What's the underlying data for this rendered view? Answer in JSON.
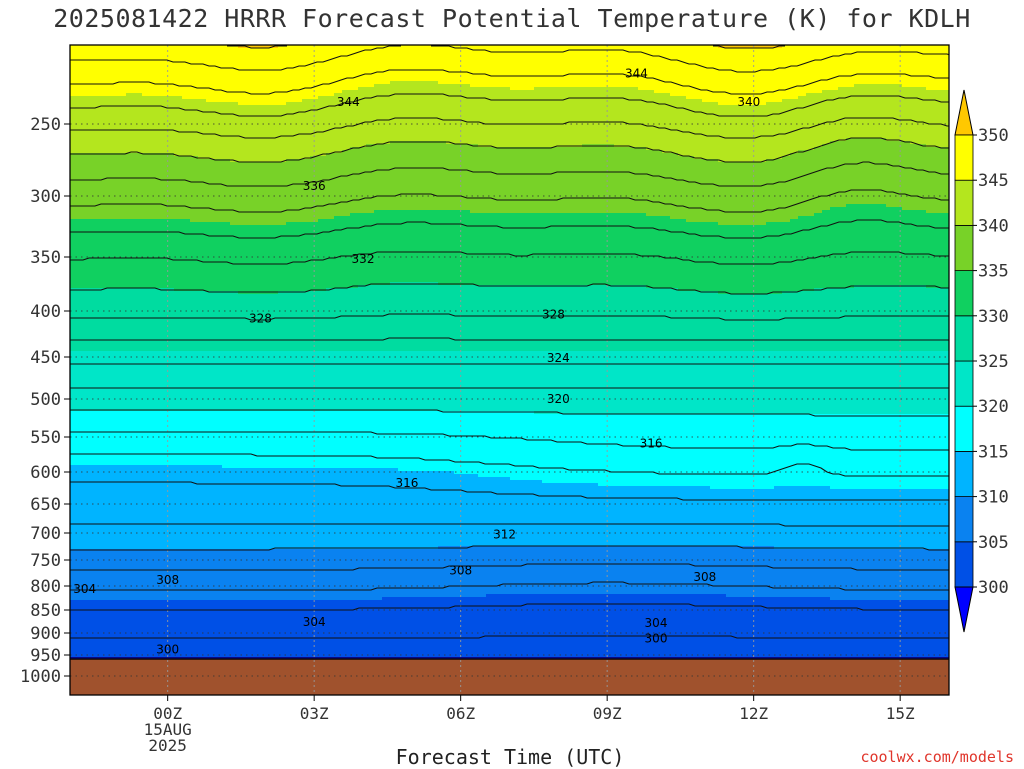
{
  "chart_data": {
    "type": "heatmap",
    "title": "2025081422 HRRR Forecast Potential Temperature (K) for KDLH",
    "xlabel": "Forecast Time (UTC)",
    "ylabel": "",
    "x_ticks": [
      "00Z",
      "03Z",
      "06Z",
      "09Z",
      "12Z",
      "15Z"
    ],
    "x_tick_hours": [
      0,
      3,
      6,
      9,
      12,
      15
    ],
    "x_date_label": [
      "15AUG",
      "2025"
    ],
    "xlim": [
      -2,
      16
    ],
    "y_ticks": [
      250,
      300,
      350,
      400,
      450,
      500,
      550,
      600,
      650,
      700,
      750,
      800,
      850,
      900,
      950,
      1000
    ],
    "ylim": [
      1020,
      200
    ],
    "y_scale": "log",
    "ground_color": "#a0522d",
    "ground_level_hpa": 960,
    "colorbar": {
      "levels": [
        300,
        305,
        310,
        315,
        320,
        325,
        330,
        335,
        340,
        345,
        350
      ],
      "labels": [
        "300",
        "305",
        "310",
        "315",
        "320",
        "325",
        "330",
        "335",
        "340",
        "345",
        "350"
      ],
      "colors": [
        "#0000ff",
        "#0050e6",
        "#0a82f0",
        "#00b4ff",
        "#00ffff",
        "#00e6c8",
        "#00dca0",
        "#10d060",
        "#78d228",
        "#b4e61e",
        "#ffff00",
        "#ffc800"
      ],
      "extend": "both"
    },
    "contour_interval": 2,
    "contour_labels": [
      {
        "value": "344",
        "hour": 9.6,
        "p": 218
      },
      {
        "value": "344",
        "hour": 3.7,
        "p": 236
      },
      {
        "value": "340",
        "hour": 11.9,
        "p": 236
      },
      {
        "value": "336",
        "hour": 3.0,
        "p": 293
      },
      {
        "value": "332",
        "hour": 4.0,
        "p": 352
      },
      {
        "value": "328",
        "hour": 1.9,
        "p": 408
      },
      {
        "value": "328",
        "hour": 7.9,
        "p": 404
      },
      {
        "value": "324",
        "hour": 8.0,
        "p": 451
      },
      {
        "value": "320",
        "hour": 8.0,
        "p": 500
      },
      {
        "value": "316",
        "hour": 9.9,
        "p": 559
      },
      {
        "value": "316",
        "hour": 4.9,
        "p": 617
      },
      {
        "value": "312",
        "hour": 6.9,
        "p": 703
      },
      {
        "value": "308",
        "hour": 6.0,
        "p": 770
      },
      {
        "value": "308",
        "hour": 11.0,
        "p": 783
      },
      {
        "value": "308",
        "hour": 0.0,
        "p": 788
      },
      {
        "value": "304",
        "hour": -1.7,
        "p": 806
      },
      {
        "value": "304",
        "hour": 3.0,
        "p": 876
      },
      {
        "value": "304",
        "hour": 10.0,
        "p": 878
      },
      {
        "value": "300",
        "hour": 10.0,
        "p": 913
      },
      {
        "value": "300",
        "hour": 0.0,
        "p": 937
      }
    ]
  },
  "credit": "coolwx.com/models"
}
